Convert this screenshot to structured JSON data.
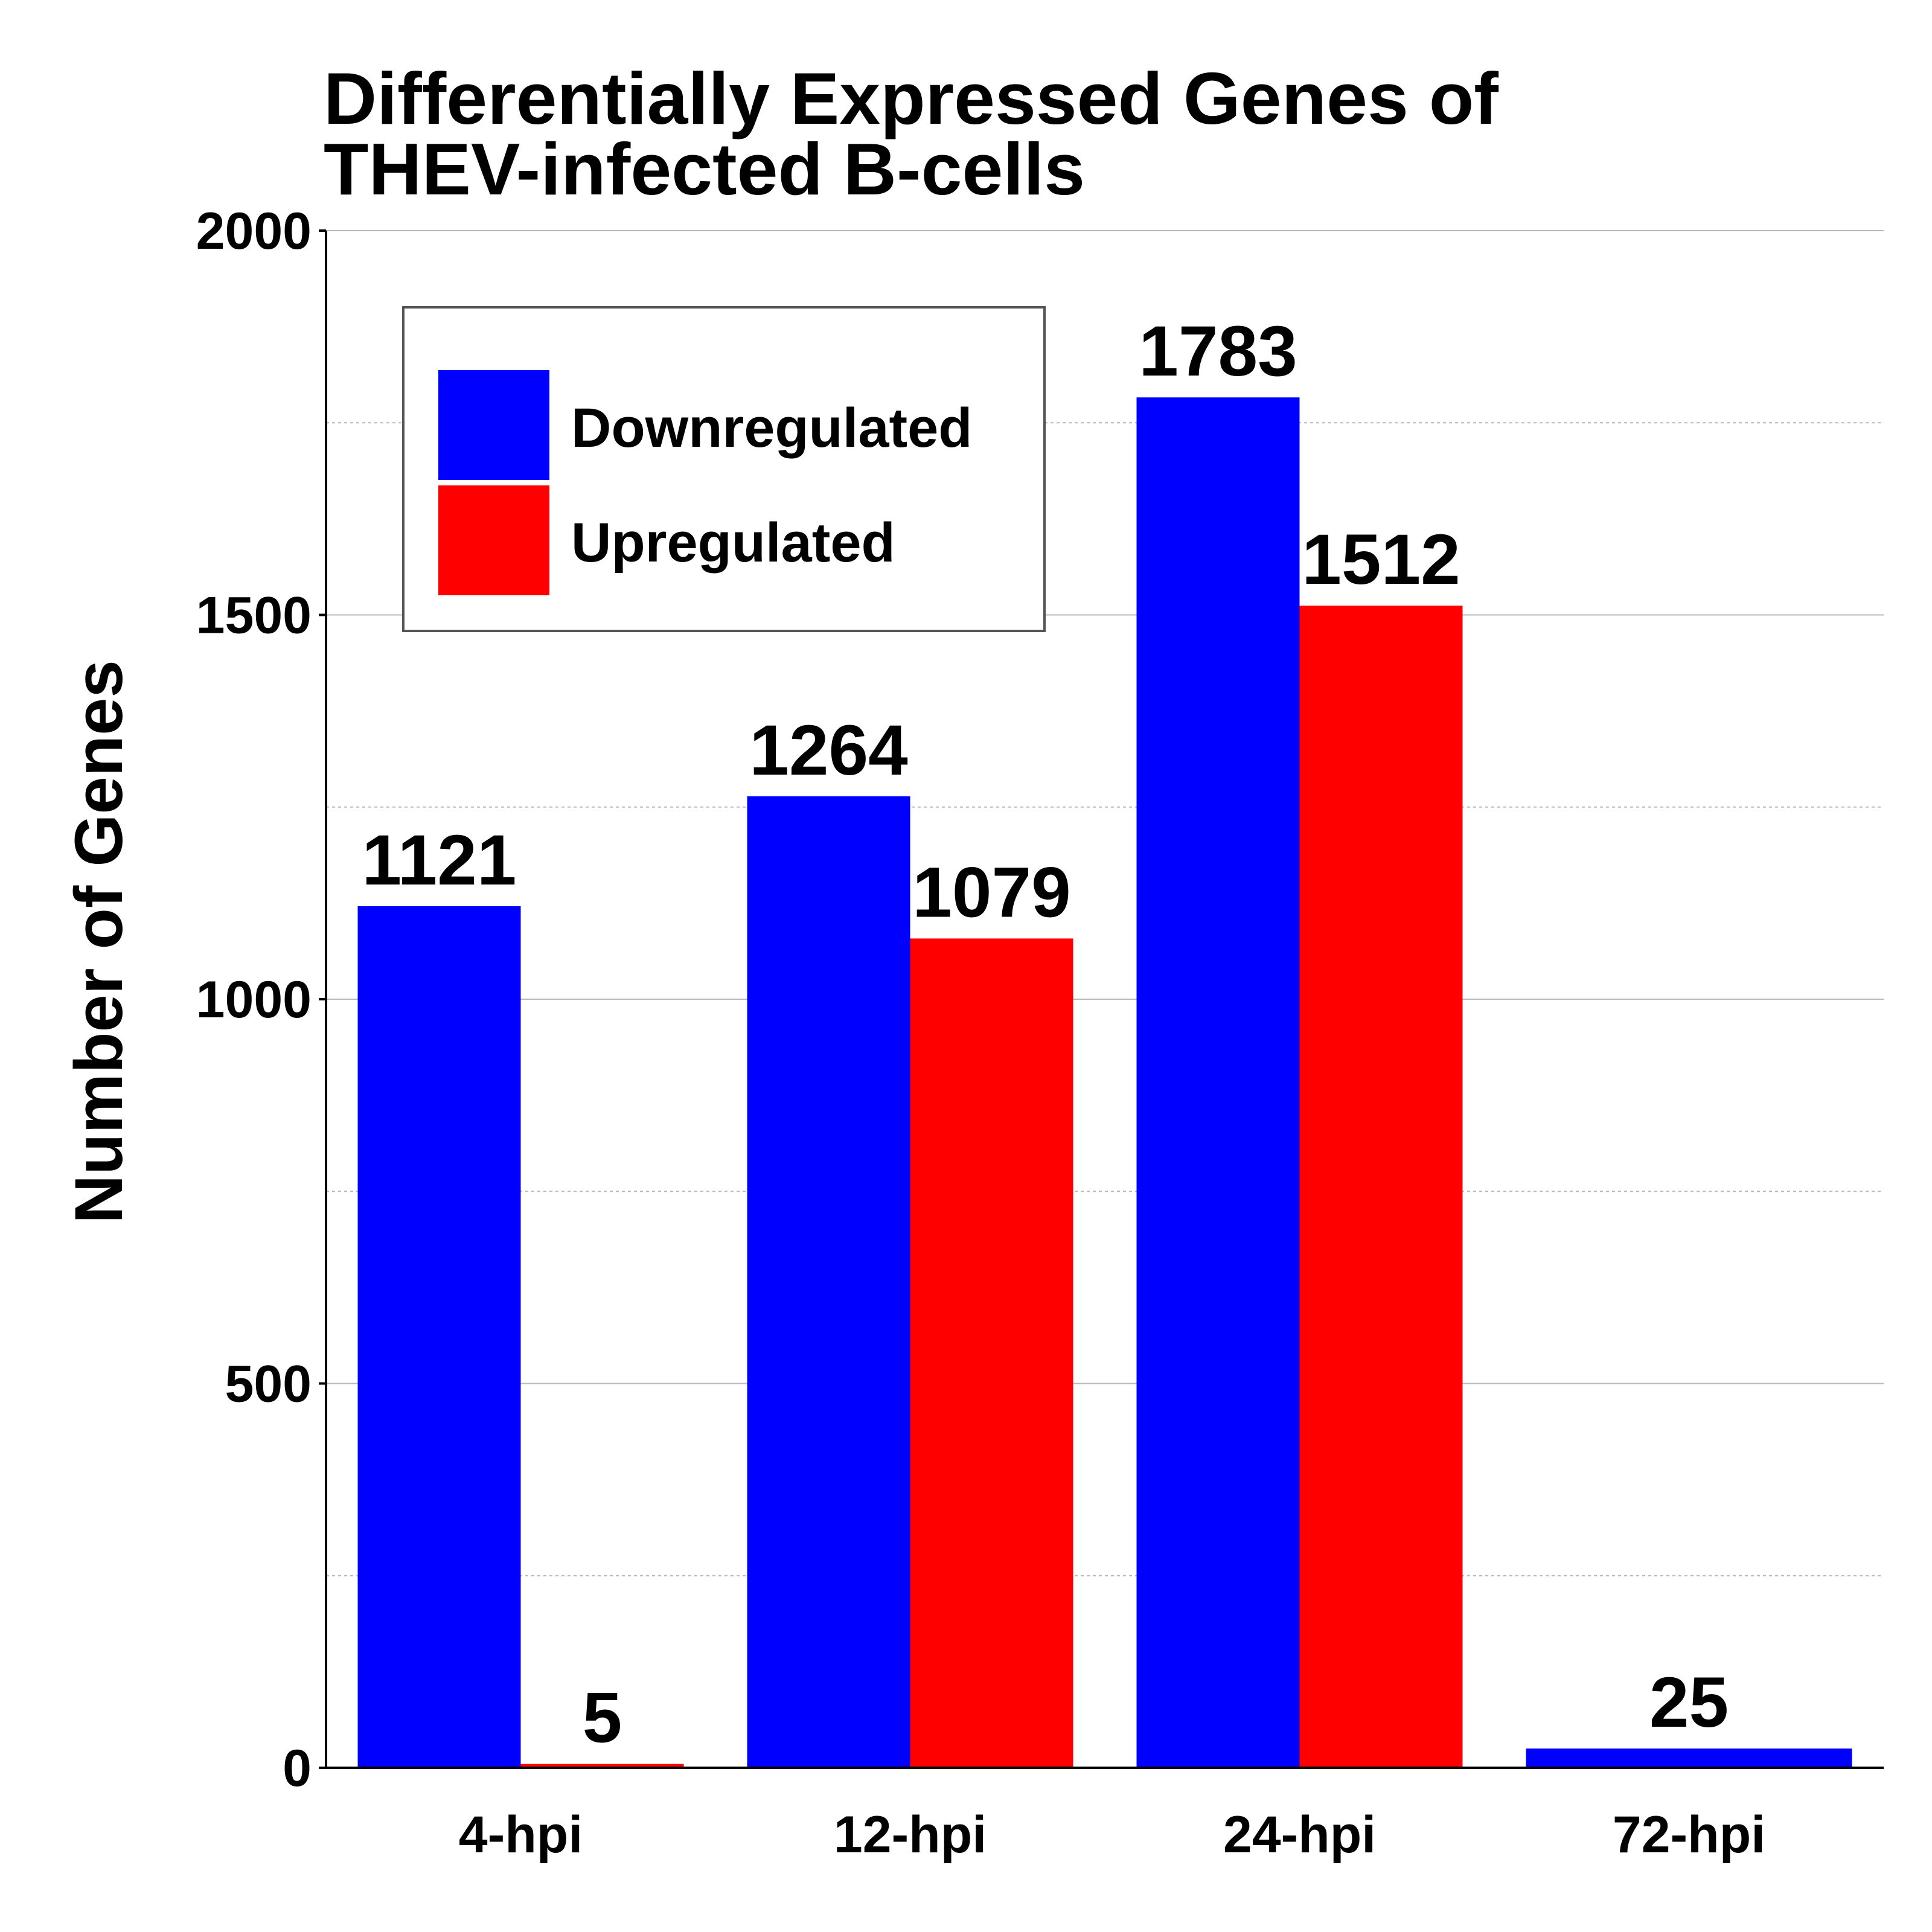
{
  "chart_data": {
    "type": "bar",
    "title_lines": [
      "Differentially Expressed Genes of",
      "THEV-infected B-cells"
    ],
    "xlabel": "",
    "ylabel": "Number of Genes",
    "categories": [
      "4-hpi",
      "12-hpi",
      "24-hpi",
      "72-hpi"
    ],
    "series": [
      {
        "name": "Downregulated",
        "color": "#0000ff",
        "values": [
          1121,
          1264,
          1783,
          25
        ]
      },
      {
        "name": "Upregulated",
        "color": "#ff0000",
        "values": [
          5,
          1079,
          1512,
          0
        ]
      }
    ],
    "value_labels": [
      [
        "1121",
        "1264",
        "1783",
        "25"
      ],
      [
        "5",
        "1079",
        "1512",
        ""
      ]
    ],
    "ylim": [
      0,
      2000
    ],
    "yticks": [
      0,
      500,
      1000,
      1500,
      2000
    ],
    "minor_gridlines": [
      250,
      750,
      1250,
      1750
    ],
    "grid": true,
    "legend_position": "top-left"
  }
}
